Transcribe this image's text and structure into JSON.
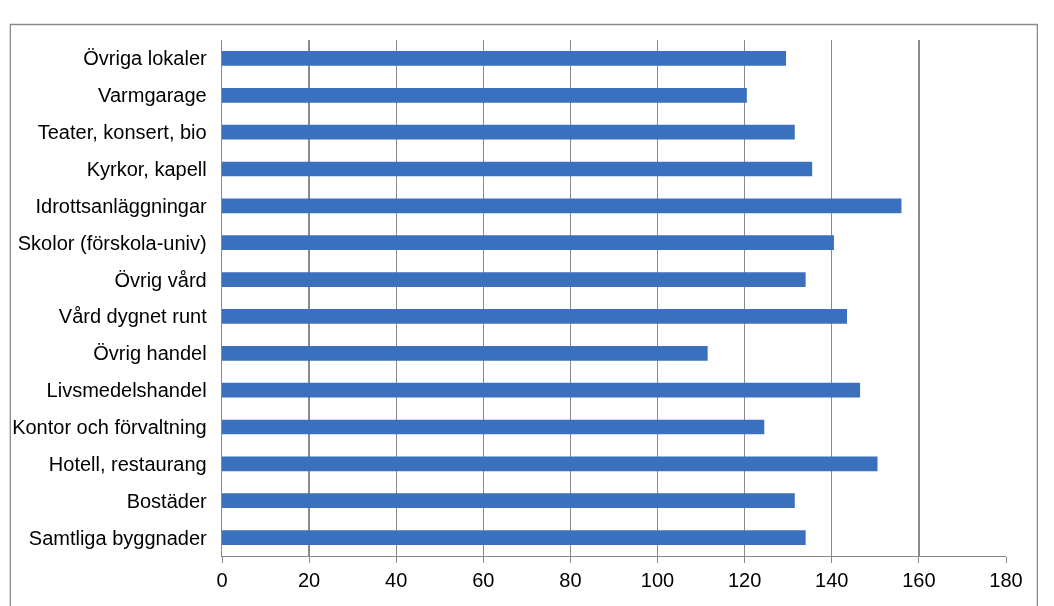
{
  "chart_data": {
    "type": "bar",
    "orientation": "horizontal",
    "categories": [
      "Övriga lokaler",
      "Varmgarage",
      "Teater, konsert, bio",
      "Kyrkor, kapell",
      "Idrottsanläggningar",
      "Skolor (förskola-univ)",
      "Övrig vård",
      "Vård dygnet runt",
      "Övrig handel",
      "Livsmedelshandel",
      "Kontor och förvaltning",
      "Hotell, restaurang",
      "Bostäder",
      "Samtliga byggnader"
    ],
    "values": [
      129.5,
      120.5,
      131.5,
      135.5,
      156,
      140.5,
      134,
      143.5,
      111.5,
      146.5,
      124.5,
      150.5,
      131.5,
      134
    ],
    "color": "#3a70bd",
    "xlim": [
      0,
      180
    ],
    "xticks": [
      0,
      20,
      40,
      60,
      80,
      100,
      120,
      140,
      160,
      180
    ],
    "grid": "x"
  }
}
